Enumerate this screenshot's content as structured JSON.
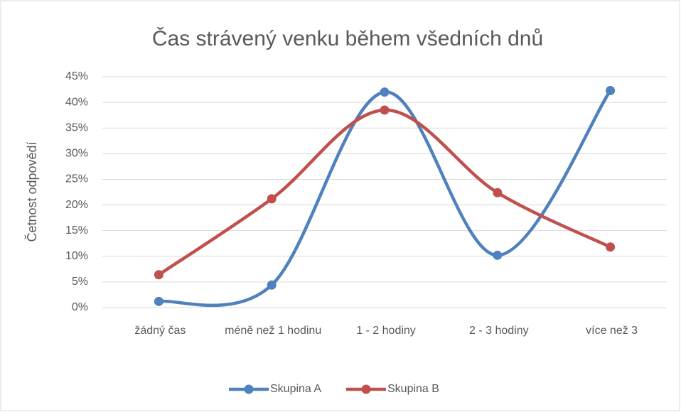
{
  "chart_data": {
    "type": "line",
    "title": "Čas strávený venku během všedních dnů",
    "y_axis_label": "Četnost odpovědí",
    "categories": [
      "žádný čas",
      "méně než 1 hodinu",
      "1 - 2 hodiny",
      "2 - 3 hodiny",
      "více než 3"
    ],
    "series": [
      {
        "name": "Skupina A",
        "color": "#4f81bd",
        "values": [
          1.2,
          4.4,
          42.0,
          10.2,
          42.3
        ]
      },
      {
        "name": "Skupina B",
        "color": "#c0504d",
        "values": [
          6.4,
          21.2,
          38.5,
          22.4,
          11.8
        ]
      }
    ],
    "smooth": true,
    "ylim": [
      0,
      45
    ],
    "yticks": [
      {
        "value": 0,
        "label": "0%"
      },
      {
        "value": 5,
        "label": "5%"
      },
      {
        "value": 10,
        "label": "10%"
      },
      {
        "value": 15,
        "label": "15%"
      },
      {
        "value": 20,
        "label": "20%"
      },
      {
        "value": 25,
        "label": "25%"
      },
      {
        "value": 30,
        "label": "30%"
      },
      {
        "value": 35,
        "label": "35%"
      },
      {
        "value": 40,
        "label": "40%"
      },
      {
        "value": 45,
        "label": "45%"
      }
    ],
    "grid": true,
    "legend": "bottom"
  }
}
